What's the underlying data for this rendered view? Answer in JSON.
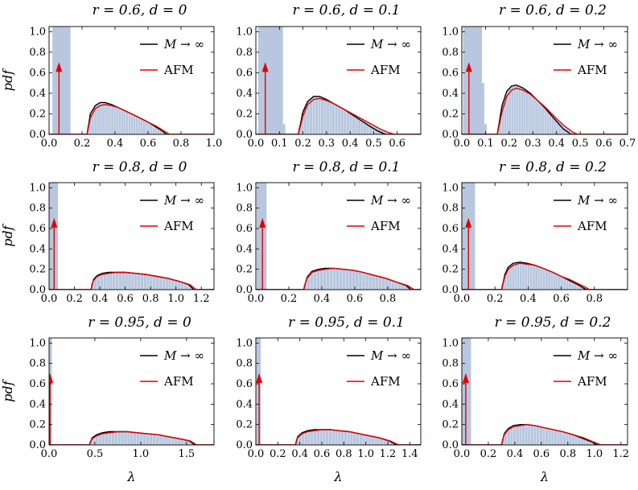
{
  "figure": {
    "xlabel": "λ",
    "ylabel": "pdf"
  },
  "colors": {
    "histogram": "#b8c7df",
    "theory_curve": "#000000",
    "afm_curve": "#e00000",
    "delta_arrow": "#e00000"
  },
  "chart_data": [
    {
      "type": "area",
      "title": "r = 0.6, d = 0",
      "legend": {
        "placement": "top-right",
        "entries": [
          "M → ∞",
          "AFM"
        ]
      },
      "xlim": [
        0,
        1.0
      ],
      "ylim": [
        0,
        1.05
      ],
      "xticks": [
        "0.0",
        "0.2",
        "0.4",
        "0.6",
        "0.8",
        "1.0"
      ],
      "yticks": [
        "0.0",
        "0.2",
        "0.4",
        "0.6",
        "0.8",
        "1.0"
      ],
      "delta": {
        "x": 0.06,
        "height": 0.68
      },
      "spike_bars": [
        [
          0.02,
          0.13,
          1.05
        ]
      ],
      "bulk_support": [
        0.23,
        0.73
      ],
      "theory_curve": {
        "x": [
          0.23,
          0.25,
          0.28,
          0.31,
          0.34,
          0.38,
          0.42,
          0.46,
          0.5,
          0.55,
          0.6,
          0.65,
          0.69,
          0.71
        ],
        "y": [
          0.0,
          0.2,
          0.28,
          0.31,
          0.31,
          0.29,
          0.26,
          0.23,
          0.2,
          0.16,
          0.12,
          0.07,
          0.03,
          0.0
        ]
      },
      "afm_curve": {
        "x": [
          0.23,
          0.25,
          0.28,
          0.31,
          0.34,
          0.38,
          0.42,
          0.46,
          0.5,
          0.55,
          0.6,
          0.65,
          0.7,
          0.73
        ],
        "y": [
          0.0,
          0.16,
          0.25,
          0.28,
          0.29,
          0.28,
          0.26,
          0.23,
          0.2,
          0.16,
          0.12,
          0.08,
          0.03,
          0.0
        ]
      }
    },
    {
      "type": "area",
      "title": "r = 0.6, d = 0.1",
      "legend": {
        "placement": "top-right",
        "entries": [
          "M → ∞",
          "AFM"
        ]
      },
      "xlim": [
        0,
        0.7
      ],
      "ylim": [
        0,
        1.05
      ],
      "xticks": [
        "0.0",
        "0.1",
        "0.2",
        "0.3",
        "0.4",
        "0.5",
        "0.6"
      ],
      "yticks": [
        "0.0",
        "0.2",
        "0.4",
        "0.6",
        "0.8",
        "1.0"
      ],
      "delta": {
        "x": 0.04,
        "height": 0.68
      },
      "spike_bars": [
        [
          0.01,
          0.115,
          1.05
        ],
        [
          0.115,
          0.125,
          0.1
        ]
      ],
      "bulk_support": [
        0.18,
        0.59
      ],
      "theory_curve": {
        "x": [
          0.18,
          0.2,
          0.22,
          0.245,
          0.27,
          0.3,
          0.33,
          0.37,
          0.41,
          0.45,
          0.49,
          0.52,
          0.54,
          0.55
        ],
        "y": [
          0.0,
          0.22,
          0.32,
          0.37,
          0.37,
          0.34,
          0.3,
          0.25,
          0.19,
          0.13,
          0.07,
          0.03,
          0.01,
          0.0
        ]
      },
      "afm_curve": {
        "x": [
          0.18,
          0.2,
          0.22,
          0.245,
          0.27,
          0.3,
          0.33,
          0.37,
          0.41,
          0.45,
          0.49,
          0.53,
          0.56,
          0.59
        ],
        "y": [
          0.0,
          0.18,
          0.29,
          0.34,
          0.35,
          0.33,
          0.3,
          0.25,
          0.2,
          0.15,
          0.1,
          0.05,
          0.02,
          0.0
        ]
      }
    },
    {
      "type": "area",
      "title": "r = 0.6, d = 0.2",
      "legend": {
        "placement": "top-right",
        "entries": [
          "M → ∞",
          "AFM"
        ]
      },
      "xlim": [
        0,
        0.7
      ],
      "ylim": [
        0,
        1.05
      ],
      "xticks": [
        "0.0",
        "0.1",
        "0.2",
        "0.3",
        "0.4",
        "0.5",
        "0.6",
        "0.7"
      ],
      "yticks": [
        "0.0",
        "0.2",
        "0.4",
        "0.6",
        "0.8",
        "1.0"
      ],
      "delta": {
        "x": 0.03,
        "height": 0.68
      },
      "spike_bars": [
        [
          0.005,
          0.085,
          1.05
        ],
        [
          0.085,
          0.095,
          0.5
        ],
        [
          0.095,
          0.105,
          0.1
        ]
      ],
      "bulk_support": [
        0.15,
        0.49
      ],
      "theory_curve": {
        "x": [
          0.15,
          0.17,
          0.19,
          0.21,
          0.23,
          0.26,
          0.29,
          0.32,
          0.35,
          0.38,
          0.41,
          0.43,
          0.45,
          0.46
        ],
        "y": [
          0.0,
          0.28,
          0.42,
          0.47,
          0.48,
          0.45,
          0.4,
          0.33,
          0.26,
          0.18,
          0.1,
          0.05,
          0.02,
          0.0
        ]
      },
      "afm_curve": {
        "x": [
          0.15,
          0.17,
          0.19,
          0.21,
          0.23,
          0.26,
          0.29,
          0.32,
          0.35,
          0.38,
          0.41,
          0.44,
          0.47,
          0.49
        ],
        "y": [
          0.0,
          0.22,
          0.37,
          0.43,
          0.45,
          0.43,
          0.39,
          0.33,
          0.27,
          0.2,
          0.13,
          0.07,
          0.02,
          0.0
        ]
      }
    },
    {
      "type": "area",
      "title": "r = 0.8, d = 0",
      "legend": {
        "placement": "top-right",
        "entries": [
          "M → ∞",
          "AFM"
        ]
      },
      "xlim": [
        0,
        1.3
      ],
      "ylim": [
        0,
        1.05
      ],
      "xticks": [
        "0.0",
        "0.2",
        "0.4",
        "0.6",
        "0.8",
        "1.0",
        "1.2"
      ],
      "yticks": [
        "0.0",
        "0.2",
        "0.4",
        "0.6",
        "0.8",
        "1.0"
      ],
      "delta": {
        "x": 0.04,
        "height": 0.68
      },
      "spike_bars": [
        [
          0.0,
          0.07,
          1.05
        ]
      ],
      "bulk_support": [
        0.33,
        1.16
      ],
      "theory_curve": {
        "x": [
          0.33,
          0.35,
          0.38,
          0.42,
          0.47,
          0.53,
          0.6,
          0.68,
          0.76,
          0.85,
          0.94,
          1.03,
          1.1,
          1.14
        ],
        "y": [
          0.0,
          0.1,
          0.14,
          0.16,
          0.17,
          0.17,
          0.17,
          0.16,
          0.15,
          0.13,
          0.11,
          0.08,
          0.05,
          0.0
        ]
      },
      "afm_curve": {
        "x": [
          0.33,
          0.35,
          0.38,
          0.42,
          0.47,
          0.53,
          0.6,
          0.68,
          0.76,
          0.85,
          0.94,
          1.03,
          1.11,
          1.16
        ],
        "y": [
          0.0,
          0.09,
          0.13,
          0.15,
          0.16,
          0.17,
          0.17,
          0.16,
          0.15,
          0.13,
          0.11,
          0.08,
          0.05,
          0.0
        ]
      }
    },
    {
      "type": "area",
      "title": "r = 0.8, d = 0.1",
      "legend": {
        "placement": "top-right",
        "entries": [
          "M → ∞",
          "AFM"
        ]
      },
      "xlim": [
        0,
        1.0
      ],
      "ylim": [
        0,
        1.05
      ],
      "xticks": [
        "0.0",
        "0.2",
        "0.4",
        "0.6",
        "0.8"
      ],
      "yticks": [
        "0.0",
        "0.2",
        "0.4",
        "0.6",
        "0.8",
        "1.0"
      ],
      "delta": {
        "x": 0.04,
        "height": 0.68
      },
      "spike_bars": [
        [
          0.005,
          0.065,
          1.05
        ]
      ],
      "bulk_support": [
        0.29,
        0.96
      ],
      "theory_curve": {
        "x": [
          0.29,
          0.31,
          0.34,
          0.38,
          0.42,
          0.47,
          0.53,
          0.59,
          0.65,
          0.72,
          0.79,
          0.86,
          0.91,
          0.94
        ],
        "y": [
          0.0,
          0.12,
          0.18,
          0.2,
          0.21,
          0.21,
          0.2,
          0.19,
          0.17,
          0.14,
          0.11,
          0.07,
          0.04,
          0.0
        ]
      },
      "afm_curve": {
        "x": [
          0.29,
          0.31,
          0.34,
          0.38,
          0.42,
          0.47,
          0.53,
          0.59,
          0.65,
          0.72,
          0.79,
          0.86,
          0.92,
          0.96
        ],
        "y": [
          0.0,
          0.11,
          0.17,
          0.19,
          0.2,
          0.21,
          0.2,
          0.19,
          0.17,
          0.14,
          0.11,
          0.07,
          0.04,
          0.0
        ]
      }
    },
    {
      "type": "area",
      "title": "r = 0.8, d = 0.2",
      "legend": {
        "placement": "top-right",
        "entries": [
          "M → ∞",
          "AFM"
        ]
      },
      "xlim": [
        0,
        1.0
      ],
      "ylim": [
        0,
        1.05
      ],
      "xticks": [
        "0.0",
        "0.2",
        "0.4",
        "0.6",
        "0.8"
      ],
      "yticks": [
        "0.0",
        "0.2",
        "0.4",
        "0.6",
        "0.8",
        "1.0"
      ],
      "delta": {
        "x": 0.04,
        "height": 0.68
      },
      "spike_bars": [
        [
          0.0,
          0.08,
          1.05
        ]
      ],
      "bulk_support": [
        0.24,
        0.77
      ],
      "theory_curve": {
        "x": [
          0.24,
          0.26,
          0.28,
          0.31,
          0.35,
          0.39,
          0.44,
          0.49,
          0.55,
          0.6,
          0.65,
          0.7,
          0.73,
          0.75
        ],
        "y": [
          0.0,
          0.15,
          0.22,
          0.26,
          0.27,
          0.26,
          0.24,
          0.21,
          0.17,
          0.13,
          0.09,
          0.05,
          0.02,
          0.0
        ]
      },
      "afm_curve": {
        "x": [
          0.24,
          0.26,
          0.28,
          0.31,
          0.35,
          0.39,
          0.44,
          0.49,
          0.55,
          0.6,
          0.65,
          0.7,
          0.74,
          0.77
        ],
        "y": [
          0.0,
          0.13,
          0.2,
          0.24,
          0.26,
          0.25,
          0.24,
          0.21,
          0.17,
          0.13,
          0.1,
          0.06,
          0.03,
          0.0
        ]
      }
    },
    {
      "type": "area",
      "title": "r = 0.95, d = 0",
      "legend": {
        "placement": "top-right",
        "entries": [
          "M → ∞",
          "AFM"
        ]
      },
      "xlim": [
        0,
        1.8
      ],
      "ylim": [
        0,
        1.05
      ],
      "xticks": [
        "0.0",
        "0.5",
        "1.0",
        "1.5"
      ],
      "yticks": [
        "0.0",
        "0.2",
        "0.4",
        "0.6",
        "0.8",
        "1.0"
      ],
      "delta": {
        "x": 0.01,
        "height": 0.68
      },
      "spike_bars": [
        [
          0.0,
          0.03,
          1.05
        ]
      ],
      "bulk_support": [
        0.44,
        1.61
      ],
      "theory_curve": {
        "x": [
          0.44,
          0.47,
          0.52,
          0.58,
          0.66,
          0.75,
          0.85,
          0.96,
          1.07,
          1.19,
          1.31,
          1.43,
          1.53,
          1.59
        ],
        "y": [
          0.0,
          0.07,
          0.1,
          0.12,
          0.13,
          0.13,
          0.13,
          0.12,
          0.11,
          0.1,
          0.08,
          0.06,
          0.04,
          0.0
        ]
      },
      "afm_curve": {
        "x": [
          0.44,
          0.47,
          0.52,
          0.58,
          0.66,
          0.75,
          0.85,
          0.96,
          1.07,
          1.19,
          1.31,
          1.43,
          1.54,
          1.61
        ],
        "y": [
          0.0,
          0.06,
          0.09,
          0.11,
          0.12,
          0.13,
          0.13,
          0.12,
          0.11,
          0.1,
          0.08,
          0.06,
          0.04,
          0.0
        ]
      }
    },
    {
      "type": "area",
      "title": "r = 0.95, d = 0.1",
      "legend": {
        "placement": "top-right",
        "entries": [
          "M → ∞",
          "AFM"
        ]
      },
      "xlim": [
        0,
        1.5
      ],
      "ylim": [
        0,
        1.05
      ],
      "xticks": [
        "0.0",
        "0.2",
        "0.4",
        "0.6",
        "0.8",
        "1.0",
        "1.2",
        "1.4"
      ],
      "yticks": [
        "0.0",
        "0.2",
        "0.4",
        "0.6",
        "0.8",
        "1.0"
      ],
      "delta": {
        "x": 0.03,
        "height": 0.68
      },
      "spike_bars": [
        [
          0.005,
          0.045,
          1.05
        ]
      ],
      "bulk_support": [
        0.36,
        1.3
      ],
      "theory_curve": {
        "x": [
          0.36,
          0.38,
          0.42,
          0.47,
          0.53,
          0.6,
          0.68,
          0.76,
          0.85,
          0.94,
          1.03,
          1.12,
          1.21,
          1.28
        ],
        "y": [
          0.0,
          0.08,
          0.12,
          0.14,
          0.15,
          0.15,
          0.15,
          0.14,
          0.13,
          0.11,
          0.09,
          0.07,
          0.04,
          0.0
        ]
      },
      "afm_curve": {
        "x": [
          0.36,
          0.38,
          0.42,
          0.47,
          0.53,
          0.6,
          0.68,
          0.76,
          0.85,
          0.94,
          1.03,
          1.12,
          1.22,
          1.3
        ],
        "y": [
          0.0,
          0.07,
          0.11,
          0.13,
          0.14,
          0.15,
          0.15,
          0.14,
          0.13,
          0.11,
          0.09,
          0.07,
          0.04,
          0.0
        ]
      }
    },
    {
      "type": "area",
      "title": "r = 0.95, d = 0.2",
      "legend": {
        "placement": "top-right",
        "entries": [
          "M → ∞",
          "AFM"
        ]
      },
      "xlim": [
        0,
        1.25
      ],
      "ylim": [
        0,
        1.05
      ],
      "xticks": [
        "0.0",
        "0.2",
        "0.4",
        "0.6",
        "0.8",
        "1.0",
        "1.2"
      ],
      "yticks": [
        "0.0",
        "0.2",
        "0.4",
        "0.6",
        "0.8",
        "1.0"
      ],
      "delta": {
        "x": 0.03,
        "height": 0.68
      },
      "spike_bars": [
        [
          0.0,
          0.07,
          1.05
        ]
      ],
      "bulk_support": [
        0.3,
        1.05
      ],
      "theory_curve": {
        "x": [
          0.3,
          0.32,
          0.35,
          0.39,
          0.44,
          0.49,
          0.55,
          0.62,
          0.69,
          0.76,
          0.84,
          0.92,
          0.98,
          1.02
        ],
        "y": [
          0.0,
          0.11,
          0.16,
          0.19,
          0.2,
          0.2,
          0.19,
          0.17,
          0.15,
          0.13,
          0.1,
          0.06,
          0.03,
          0.0
        ]
      },
      "afm_curve": {
        "x": [
          0.3,
          0.32,
          0.35,
          0.39,
          0.44,
          0.49,
          0.55,
          0.62,
          0.69,
          0.76,
          0.84,
          0.92,
          0.99,
          1.05
        ],
        "y": [
          0.0,
          0.1,
          0.15,
          0.18,
          0.19,
          0.2,
          0.19,
          0.17,
          0.15,
          0.13,
          0.1,
          0.07,
          0.03,
          0.0
        ]
      }
    }
  ]
}
